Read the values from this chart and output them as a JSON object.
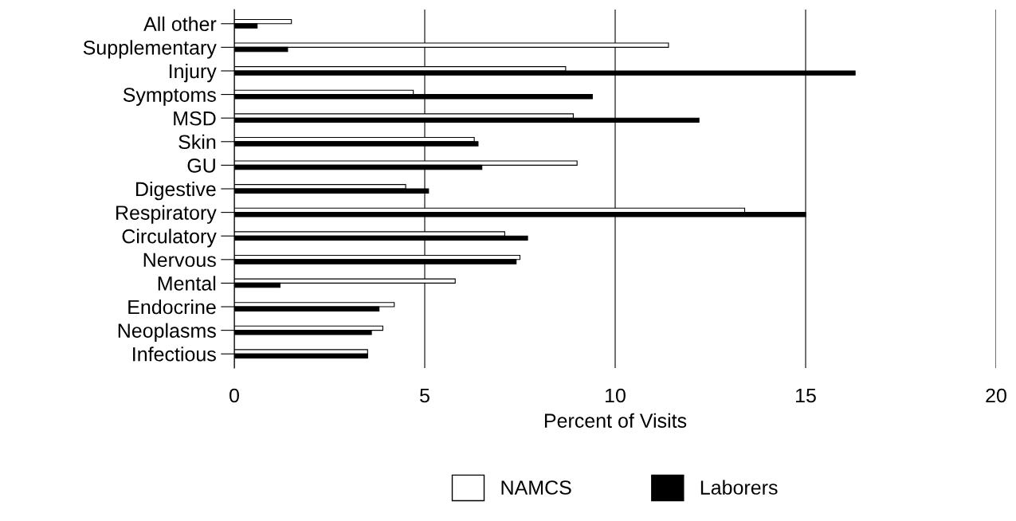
{
  "chart_data": {
    "type": "bar",
    "orientation": "horizontal",
    "xlabel": "Percent of Visits",
    "categories": [
      "All other",
      "Supplementary",
      "Injury",
      "Symptoms",
      "MSD",
      "Skin",
      "GU",
      "Digestive",
      "Respiratory",
      "Circulatory",
      "Nervous",
      "Mental",
      "Endocrine",
      "Neoplasms",
      "Infectious"
    ],
    "series": [
      {
        "name": "NAMCS",
        "color": "#ffffff",
        "values": [
          1.5,
          11.4,
          8.7,
          4.7,
          8.9,
          6.3,
          9.0,
          4.5,
          13.4,
          7.1,
          7.5,
          5.8,
          4.2,
          3.9,
          3.5
        ]
      },
      {
        "name": "Laborers",
        "color": "#000000",
        "values": [
          0.6,
          1.4,
          16.3,
          9.4,
          12.2,
          6.4,
          6.5,
          5.1,
          15.0,
          7.7,
          7.4,
          1.2,
          3.8,
          3.6,
          3.5
        ]
      }
    ],
    "xlim": [
      0,
      20
    ],
    "xticks": [
      0,
      5,
      10,
      15,
      20
    ],
    "grid": "x",
    "legend": "bottom"
  }
}
